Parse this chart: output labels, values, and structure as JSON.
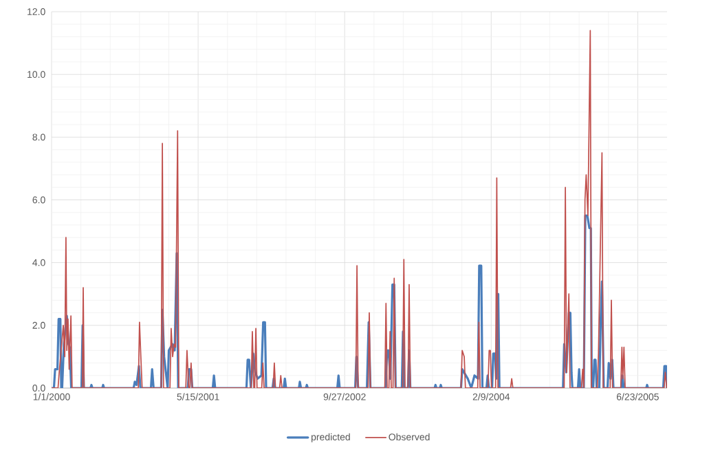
{
  "chart_data": {
    "type": "line",
    "grid": true,
    "legend": "bottom",
    "line_style": "solid",
    "xlim": [
      "2000-01-01",
      "2005-10-01"
    ],
    "xticks": [
      {
        "value": "2000-01-01",
        "label": "1/1/2000"
      },
      {
        "value": "2001-05-15",
        "label": "5/15/2001"
      },
      {
        "value": "2002-09-27",
        "label": "9/27/2002"
      },
      {
        "value": "2004-02-09",
        "label": "2/9/2004"
      },
      {
        "value": "2005-06-23",
        "label": "6/23/2005"
      }
    ],
    "ylim": [
      0,
      12
    ],
    "yticks": [
      {
        "value": 0,
        "label": "0.0"
      },
      {
        "value": 2,
        "label": "2.0"
      },
      {
        "value": 4,
        "label": "4.0"
      },
      {
        "value": 6,
        "label": "6.0"
      },
      {
        "value": 8,
        "label": "8.0"
      },
      {
        "value": 10,
        "label": "10.0"
      },
      {
        "value": 12,
        "label": "12.0"
      }
    ],
    "series": [
      {
        "name": "predicted",
        "color": "#4a7ebb",
        "x": [
          "2000-01-01",
          "2000-01-09",
          "2000-01-13",
          "2000-01-21",
          "2000-01-25",
          "2000-01-31",
          "2000-02-03",
          "2000-02-06",
          "2000-02-12",
          "2000-02-22",
          "2000-02-28",
          "2000-03-03",
          "2000-03-08",
          "2000-04-12",
          "2000-04-16",
          "2000-04-20",
          "2000-05-13",
          "2000-05-16",
          "2000-05-19",
          "2000-06-22",
          "2000-06-25",
          "2000-06-28",
          "2000-10-07",
          "2000-10-11",
          "2000-10-17",
          "2000-10-25",
          "2000-10-30",
          "2000-12-05",
          "2000-12-09",
          "2000-12-14",
          "2001-01-09",
          "2001-01-13",
          "2001-01-19",
          "2001-01-31",
          "2001-02-04",
          "2001-02-16",
          "2001-02-24",
          "2001-03-03",
          "2001-03-08",
          "2001-04-10",
          "2001-04-14",
          "2001-04-21",
          "2001-04-25",
          "2001-07-04",
          "2001-07-08",
          "2001-07-12",
          "2001-10-27",
          "2001-10-31",
          "2001-11-05",
          "2001-11-11",
          "2001-11-19",
          "2001-11-26",
          "2001-12-04",
          "2001-12-17",
          "2001-12-23",
          "2001-12-29",
          "2002-01-02",
          "2002-01-24",
          "2002-01-28",
          "2002-02-01",
          "2002-03-03",
          "2002-03-07",
          "2002-03-11",
          "2002-04-24",
          "2002-04-27",
          "2002-05-01",
          "2002-05-18",
          "2002-05-21",
          "2002-05-24",
          "2002-09-02",
          "2002-09-06",
          "2002-09-10",
          "2002-11-02",
          "2002-11-06",
          "2002-11-12",
          "2002-12-12",
          "2002-12-18",
          "2002-12-24",
          "2003-02-13",
          "2003-02-19",
          "2003-02-24",
          "2003-03-02",
          "2003-03-09",
          "2003-03-15",
          "2003-03-20",
          "2003-04-10",
          "2003-04-14",
          "2003-04-18",
          "2003-05-01",
          "2003-05-05",
          "2003-05-09",
          "2003-07-31",
          "2003-08-03",
          "2003-08-06",
          "2003-08-18",
          "2003-08-21",
          "2003-08-24",
          "2003-10-29",
          "2003-11-02",
          "2003-11-21",
          "2003-12-03",
          "2003-12-14",
          "2003-12-26",
          "2003-12-30",
          "2004-01-06",
          "2004-01-10",
          "2004-01-24",
          "2004-01-28",
          "2004-02-01",
          "2004-02-12",
          "2004-02-16",
          "2004-02-22",
          "2004-02-26",
          "2004-03-01",
          "2004-03-04",
          "2004-03-08",
          "2004-10-11",
          "2004-10-15",
          "2004-10-22",
          "2004-10-31",
          "2004-11-05",
          "2004-11-09",
          "2004-11-12",
          "2004-12-01",
          "2004-12-05",
          "2004-12-09",
          "2004-12-21",
          "2004-12-26",
          "2005-01-02",
          "2005-01-09",
          "2005-01-14",
          "2005-01-17",
          "2005-01-22",
          "2005-01-26",
          "2005-01-30",
          "2005-02-03",
          "2005-02-12",
          "2005-02-16",
          "2005-02-21",
          "2005-02-27",
          "2005-03-12",
          "2005-03-16",
          "2005-03-22",
          "2005-03-28",
          "2005-04-01",
          "2005-04-28",
          "2005-05-02",
          "2005-05-06",
          "2005-07-22",
          "2005-07-25",
          "2005-07-28",
          "2005-09-18",
          "2005-09-22",
          "2005-09-28",
          "2005-10-01"
        ],
        "values": [
          0,
          0,
          0.6,
          0.6,
          2.2,
          2.2,
          0,
          0,
          1.4,
          2.3,
          1.4,
          1.3,
          0,
          0,
          2.0,
          0,
          0,
          0.1,
          0,
          0,
          0.1,
          0,
          0,
          0.2,
          0.1,
          0.7,
          0,
          0,
          0.6,
          0,
          0,
          2.5,
          1.0,
          0,
          1.2,
          1.4,
          1.2,
          4.3,
          0,
          0,
          0.6,
          0.6,
          0,
          0,
          0.4,
          0,
          0,
          0.9,
          0.9,
          0,
          1.1,
          0.5,
          0.3,
          0.4,
          2.1,
          2.1,
          0,
          0,
          0.3,
          0,
          0,
          0.3,
          0,
          0,
          0.2,
          0,
          0,
          0.1,
          0,
          0,
          0.4,
          0,
          0,
          1.0,
          0,
          0,
          2.1,
          0,
          0,
          1.2,
          1.2,
          0.3,
          3.3,
          3.3,
          0,
          0,
          1.8,
          0,
          0,
          1.2,
          0,
          0,
          0.1,
          0,
          0,
          0.1,
          0,
          0,
          0.6,
          0.3,
          0,
          0.4,
          0.3,
          3.9,
          3.9,
          0,
          0,
          0.4,
          0,
          0,
          1.1,
          1.1,
          0.3,
          3.0,
          3.0,
          0,
          0,
          1.4,
          0.5,
          2.4,
          2.4,
          0.5,
          0,
          0,
          0.6,
          0,
          0,
          5.5,
          5.5,
          5.1,
          5.1,
          0,
          0,
          0.9,
          0.9,
          0,
          0,
          2.0,
          3.4,
          0,
          0,
          0.8,
          0.3,
          0.9,
          0,
          0,
          0.4,
          0,
          0,
          0.1,
          0,
          0,
          0.7,
          0.7,
          0
        ]
      },
      {
        "name": "Observed",
        "color": "#c0504d",
        "x": [
          "2000-01-01",
          "2000-01-23",
          "2000-01-27",
          "2000-02-10",
          "2000-02-15",
          "2000-02-19",
          "2000-02-22",
          "2000-02-26",
          "2000-03-01",
          "2000-03-07",
          "2000-03-11",
          "2000-04-15",
          "2000-04-18",
          "2000-04-21",
          "2000-10-23",
          "2000-10-27",
          "2000-11-01",
          "2000-11-05",
          "2001-01-09",
          "2001-01-13",
          "2001-01-17",
          "2001-02-08",
          "2001-02-12",
          "2001-02-17",
          "2001-02-22",
          "2001-02-27",
          "2001-03-06",
          "2001-03-10",
          "2001-04-03",
          "2001-04-07",
          "2001-04-13",
          "2001-04-17",
          "2001-04-21",
          "2001-04-25",
          "2001-11-12",
          "2001-11-16",
          "2001-11-21",
          "2001-11-24",
          "2001-11-28",
          "2001-12-02",
          "2001-12-18",
          "2001-12-22",
          "2001-12-26",
          "2002-01-26",
          "2002-01-30",
          "2002-02-03",
          "2002-02-17",
          "2002-02-21",
          "2002-02-25",
          "2002-11-04",
          "2002-11-08",
          "2002-11-12",
          "2002-12-16",
          "2002-12-20",
          "2002-12-24",
          "2003-02-11",
          "2003-02-15",
          "2003-02-19",
          "2003-02-25",
          "2003-03-01",
          "2003-03-05",
          "2003-03-11",
          "2003-03-15",
          "2003-03-19",
          "2003-04-13",
          "2003-04-17",
          "2003-04-21",
          "2003-05-01",
          "2003-05-05",
          "2003-05-09",
          "2003-10-29",
          "2003-11-02",
          "2003-11-09",
          "2003-11-13",
          "2003-12-25",
          "2003-12-29",
          "2004-01-02",
          "2004-01-29",
          "2004-02-02",
          "2004-02-06",
          "2004-02-10",
          "2004-02-24",
          "2004-02-28",
          "2004-03-03",
          "2004-04-15",
          "2004-04-19",
          "2004-04-23",
          "2004-10-15",
          "2004-10-19",
          "2004-10-23",
          "2004-10-31",
          "2004-11-04",
          "2004-12-13",
          "2004-12-17",
          "2004-12-21",
          "2004-12-25",
          "2004-12-29",
          "2005-01-04",
          "2005-01-12",
          "2005-01-16",
          "2005-02-05",
          "2005-02-09",
          "2005-02-21",
          "2005-02-25",
          "2005-03-21",
          "2005-03-25",
          "2005-03-29",
          "2005-04-26",
          "2005-04-30",
          "2005-05-03",
          "2005-05-07",
          "2005-05-11",
          "2005-09-21",
          "2005-09-25",
          "2005-09-30"
        ],
        "values": [
          0,
          0,
          0.5,
          2.0,
          1.0,
          4.8,
          1.2,
          2.2,
          0.6,
          2.3,
          0,
          0,
          3.2,
          0,
          0,
          2.1,
          0.9,
          0,
          0,
          7.8,
          0,
          0,
          1.9,
          1.0,
          1.4,
          1.3,
          8.2,
          0,
          0,
          1.2,
          0,
          0,
          0.8,
          0,
          0,
          1.8,
          0,
          0,
          1.9,
          0,
          0,
          0.8,
          0,
          0,
          0.8,
          0,
          0,
          0.4,
          0,
          0,
          3.9,
          0,
          0,
          2.4,
          0,
          0,
          2.7,
          0,
          0,
          1.8,
          0,
          0,
          3.5,
          0,
          0,
          4.1,
          0,
          0,
          3.3,
          0,
          0,
          1.2,
          1.0,
          0,
          0,
          2.1,
          0,
          0,
          1.2,
          1.2,
          0,
          0,
          6.7,
          0,
          0,
          0.3,
          0,
          0,
          6.4,
          0.5,
          3.0,
          0,
          0,
          0.6,
          0,
          6.0,
          6.8,
          5.5,
          11.4,
          0,
          0,
          1.1,
          7.5,
          0,
          0,
          2.8,
          0,
          0,
          1.3,
          0.3,
          1.3,
          0,
          0,
          0.5,
          0
        ]
      }
    ]
  }
}
